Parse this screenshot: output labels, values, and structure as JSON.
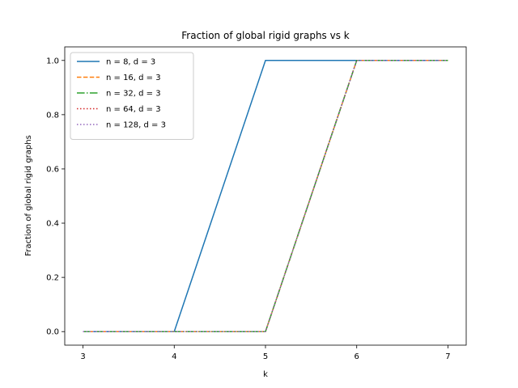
{
  "chart_data": {
    "type": "line",
    "title": "Fraction of global rigid graphs vs k",
    "xlabel": "k",
    "ylabel": "Fraction of global rigid graphs",
    "x": [
      3,
      4,
      5,
      6,
      7
    ],
    "xlim": [
      2.8,
      7.2
    ],
    "ylim": [
      -0.05,
      1.05
    ],
    "xticks": [
      "3",
      "4",
      "5",
      "6",
      "7"
    ],
    "yticks": [
      "0.0",
      "0.2",
      "0.4",
      "0.6",
      "0.8",
      "1.0"
    ],
    "grid": false,
    "legend_position": "top-left",
    "series": [
      {
        "name": "n = 8, d = 3",
        "values": [
          0.0,
          0.0,
          1.0,
          1.0,
          1.0
        ],
        "color": "#1f77b4",
        "dash": "solid"
      },
      {
        "name": "n = 16, d = 3",
        "values": [
          0.0,
          0.0,
          0.0,
          1.0,
          1.0
        ],
        "color": "#ff7f0e",
        "dash": "dashed"
      },
      {
        "name": "n = 32, d = 3",
        "values": [
          0.0,
          0.0,
          0.0,
          1.0,
          1.0
        ],
        "color": "#2ca02c",
        "dash": "dashdot"
      },
      {
        "name": "n = 64, d = 3",
        "values": [
          0.0,
          0.0,
          0.0,
          1.0,
          1.0
        ],
        "color": "#d62728",
        "dash": "dotted"
      },
      {
        "name": "n = 128, d = 3",
        "values": [
          0.0,
          0.0,
          0.0,
          1.0,
          1.0
        ],
        "color": "#9467bd",
        "dash": "dotted"
      }
    ]
  }
}
